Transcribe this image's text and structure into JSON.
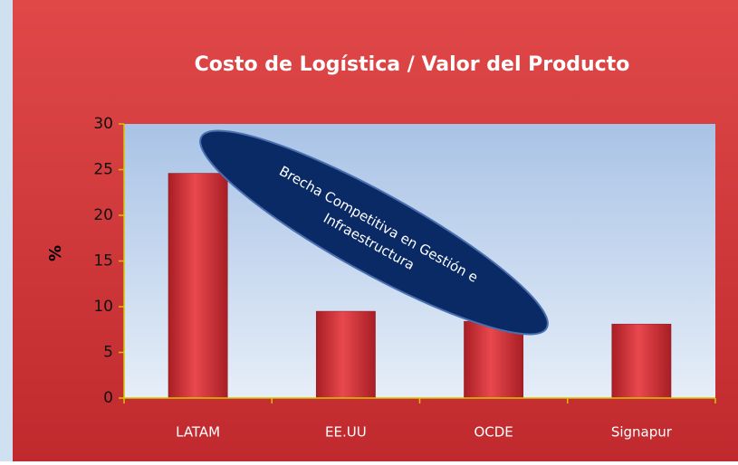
{
  "chart_data": {
    "type": "bar",
    "title": "Costo de Logística / Valor del Producto",
    "y_label": "%",
    "categories": [
      "LATAM",
      "EE.UU",
      "OCDE",
      "Signapur"
    ],
    "values": [
      24.6,
      9.5,
      8.4,
      8.1
    ],
    "color": "#d6333a",
    "ylim": [
      0,
      30
    ],
    "yticks": [
      0,
      5,
      10,
      15,
      20,
      25,
      30
    ],
    "grid": false,
    "annotation": [
      "Brecha Competitiva en Gestión e",
      "Infraestructura"
    ]
  }
}
